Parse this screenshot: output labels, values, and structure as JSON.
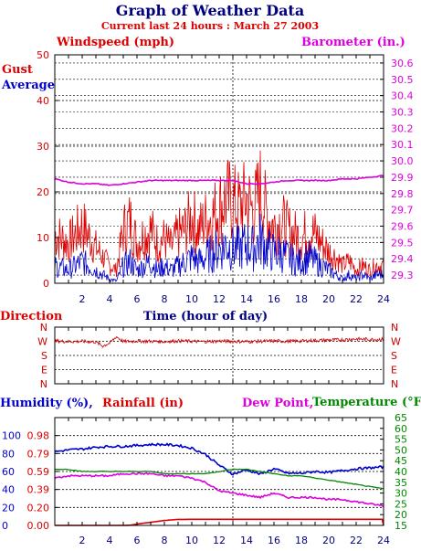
{
  "header": {
    "title": "Graph of Weather Data",
    "subtitle": "Current last 24 hours : March 27 2003"
  },
  "colors": {
    "gust": "#dd0000",
    "average": "#0000cc",
    "barometer": "#dd00dd",
    "direction": "#cc0000",
    "humidity": "#0000cc",
    "rainfall": "#dd0000",
    "dewpoint": "#dd00dd",
    "temperature": "#008800",
    "title": "#000080",
    "grid": "#000000"
  },
  "chart_data": [
    {
      "type": "line",
      "labels": {
        "windspeed": "Windspeed (mph)",
        "barometer": "Barometer (in.)",
        "gust": "Gust",
        "average": "Average",
        "xlabel": "Time (hour of day)"
      },
      "xlim": [
        0,
        24
      ],
      "x_ticks": [
        "2",
        "4",
        "6",
        "8",
        "10",
        "12",
        "14",
        "16",
        "18",
        "20",
        "22",
        "24"
      ],
      "ylim_left": [
        0,
        50
      ],
      "y_ticks_left": [
        "50",
        "40",
        "30",
        "20",
        "10",
        "0"
      ],
      "ylim_right": [
        29.25,
        30.65
      ],
      "y_ticks_right": [
        "30.6",
        "30.5",
        "30.4",
        "30.3",
        "30.2",
        "30.1",
        "30.0",
        "29.9",
        "29.8",
        "29.7",
        "29.6",
        "29.5",
        "29.4",
        "29.3"
      ],
      "grid": true,
      "marker_hour": 13,
      "series": [
        {
          "name": "Gust",
          "axis": "left",
          "x": [
            0,
            1,
            2,
            3,
            4,
            4.5,
            5,
            5.5,
            6,
            6.5,
            7,
            7.5,
            8,
            8.5,
            9,
            9.5,
            10,
            10.5,
            11,
            11.5,
            12,
            12.5,
            13,
            13.5,
            14,
            14.5,
            15,
            15.5,
            16,
            16.5,
            17,
            17.5,
            18,
            18.5,
            19,
            19.5,
            20,
            20.5,
            21,
            21.5,
            22,
            22.5,
            23,
            23.5,
            24
          ],
          "values": [
            11,
            9,
            13,
            8,
            4,
            3,
            12,
            14,
            9,
            11,
            12,
            9,
            10,
            8,
            11,
            12,
            15,
            12,
            14,
            15,
            17,
            19,
            18,
            17,
            19,
            16,
            21,
            15,
            13,
            14,
            12,
            11,
            10,
            12,
            11,
            9,
            7,
            6,
            4,
            5,
            3,
            4,
            3,
            4,
            4
          ]
        },
        {
          "name": "Average",
          "axis": "left",
          "x": [
            0,
            1,
            2,
            3,
            4,
            4.5,
            5,
            5.5,
            6,
            6.5,
            7,
            7.5,
            8,
            8.5,
            9,
            9.5,
            10,
            10.5,
            11,
            11.5,
            12,
            12.5,
            13,
            13.5,
            14,
            14.5,
            15,
            15.5,
            16,
            16.5,
            17,
            17.5,
            18,
            18.5,
            19,
            19.5,
            20,
            20.5,
            21,
            21.5,
            22,
            22.5,
            23,
            23.5,
            24
          ],
          "values": [
            4,
            3,
            5,
            3,
            1,
            0.5,
            4,
            5,
            3,
            4,
            5,
            3,
            4,
            3,
            4,
            5,
            6,
            5,
            6,
            7,
            8,
            9,
            8,
            8,
            9,
            8,
            10,
            8,
            7,
            7,
            6,
            5,
            5,
            6,
            5,
            4,
            3,
            2,
            1,
            2,
            1,
            2,
            1,
            2,
            2
          ]
        },
        {
          "name": "Barometer",
          "axis": "right",
          "x": [
            0,
            1,
            2,
            3,
            4,
            5,
            6,
            7,
            8,
            9,
            10,
            11,
            12,
            13,
            14,
            15,
            16,
            17,
            18,
            19,
            20,
            21,
            22,
            23,
            24
          ],
          "values": [
            29.89,
            29.87,
            29.86,
            29.86,
            29.85,
            29.86,
            29.87,
            29.88,
            29.88,
            29.88,
            29.88,
            29.88,
            29.88,
            29.88,
            29.86,
            29.86,
            29.87,
            29.88,
            29.88,
            29.88,
            29.88,
            29.89,
            29.89,
            29.9,
            29.91
          ]
        }
      ]
    },
    {
      "type": "line",
      "labels": {
        "title": "Direction"
      },
      "xlim": [
        0,
        24
      ],
      "y_ticks": [
        "N",
        "W",
        "S",
        "E",
        "N"
      ],
      "ylim": [
        0,
        360
      ],
      "grid": true,
      "series": [
        {
          "name": "Direction",
          "x": [
            0,
            1,
            2,
            3,
            3.5,
            4,
            4.5,
            5,
            6,
            7,
            8,
            9,
            10,
            11,
            12,
            13,
            14,
            15,
            16,
            17,
            18,
            19,
            20,
            21,
            22,
            23,
            24
          ],
          "values": [
            272,
            268,
            270,
            265,
            240,
            258,
            300,
            268,
            272,
            270,
            268,
            272,
            270,
            268,
            272,
            270,
            268,
            270,
            272,
            270,
            272,
            275,
            278,
            280,
            285,
            282,
            283
          ]
        }
      ]
    },
    {
      "type": "line",
      "labels": {
        "humidity": "Humidity (%),",
        "rainfall": "Rainfall (in)",
        "dewpoint": "Dew Point,",
        "temperature": "Temperature (°F)"
      },
      "xlim": [
        0,
        24
      ],
      "x_ticks": [
        "2",
        "4",
        "6",
        "8",
        "10",
        "12",
        "14",
        "16",
        "18",
        "20",
        "22",
        "24"
      ],
      "ylim_humidity": [
        0,
        120
      ],
      "y_ticks_humidity": [
        "100",
        "80",
        "60",
        "40",
        "20",
        "0"
      ],
      "y_ticks_rainfall": [
        "0.98",
        "0.79",
        "0.59",
        "0.39",
        "0.20",
        "0.00"
      ],
      "ylim_temp": [
        15,
        65
      ],
      "y_ticks_temp": [
        "65",
        "60",
        "55",
        "50",
        "45",
        "40",
        "35",
        "30",
        "25",
        "20",
        "15"
      ],
      "grid": true,
      "series": [
        {
          "name": "Humidity",
          "axis": "humidity",
          "x": [
            0,
            1,
            2,
            3,
            4,
            5,
            6,
            7,
            8,
            9,
            10,
            11,
            12,
            13,
            14,
            15,
            16,
            17,
            18,
            19,
            20,
            21,
            22,
            23,
            24
          ],
          "values": [
            82,
            84,
            85,
            87,
            88,
            88,
            89,
            90,
            90,
            89,
            86,
            79,
            67,
            57,
            62,
            57,
            63,
            58,
            58,
            60,
            59,
            61,
            63,
            64,
            65
          ]
        },
        {
          "name": "Rainfall",
          "axis": "humidity",
          "x": [
            0,
            4,
            5,
            5.5,
            6,
            7,
            8,
            9,
            10,
            11,
            12,
            13,
            14,
            15,
            16,
            17,
            18,
            19,
            20,
            21,
            22,
            23,
            23.9,
            24
          ],
          "values": [
            0,
            0,
            0,
            0.2,
            1.5,
            3.5,
            5.5,
            6.7,
            6.8,
            6.8,
            6.8,
            6.8,
            6.8,
            6.8,
            6.8,
            6.8,
            6.8,
            6.8,
            6.8,
            6.8,
            6.8,
            6.8,
            6.8,
            0
          ]
        },
        {
          "name": "Dew Point",
          "axis": "temp",
          "x": [
            0,
            1,
            2,
            3,
            4,
            5,
            6,
            7,
            8,
            9,
            10,
            11,
            12,
            13,
            14,
            15,
            16,
            17,
            18,
            19,
            20,
            21,
            22,
            23,
            24
          ],
          "values": [
            37,
            38,
            38,
            38,
            38,
            39,
            39,
            39,
            38,
            38,
            37,
            35,
            31,
            30,
            29,
            28,
            30,
            28,
            28,
            28,
            27,
            27,
            26,
            25,
            24
          ]
        },
        {
          "name": "Temperature",
          "axis": "temp",
          "x": [
            0,
            1,
            2,
            3,
            4,
            5,
            6,
            7,
            8,
            9,
            10,
            11,
            12,
            13,
            14,
            15,
            16,
            17,
            18,
            19,
            20,
            21,
            22,
            23,
            24
          ],
          "values": [
            41,
            41,
            40,
            40,
            40,
            40,
            40,
            40,
            39,
            39,
            39,
            39,
            40,
            41,
            41,
            40,
            39,
            38,
            38,
            37,
            36,
            35,
            34,
            33,
            32
          ]
        }
      ]
    }
  ]
}
